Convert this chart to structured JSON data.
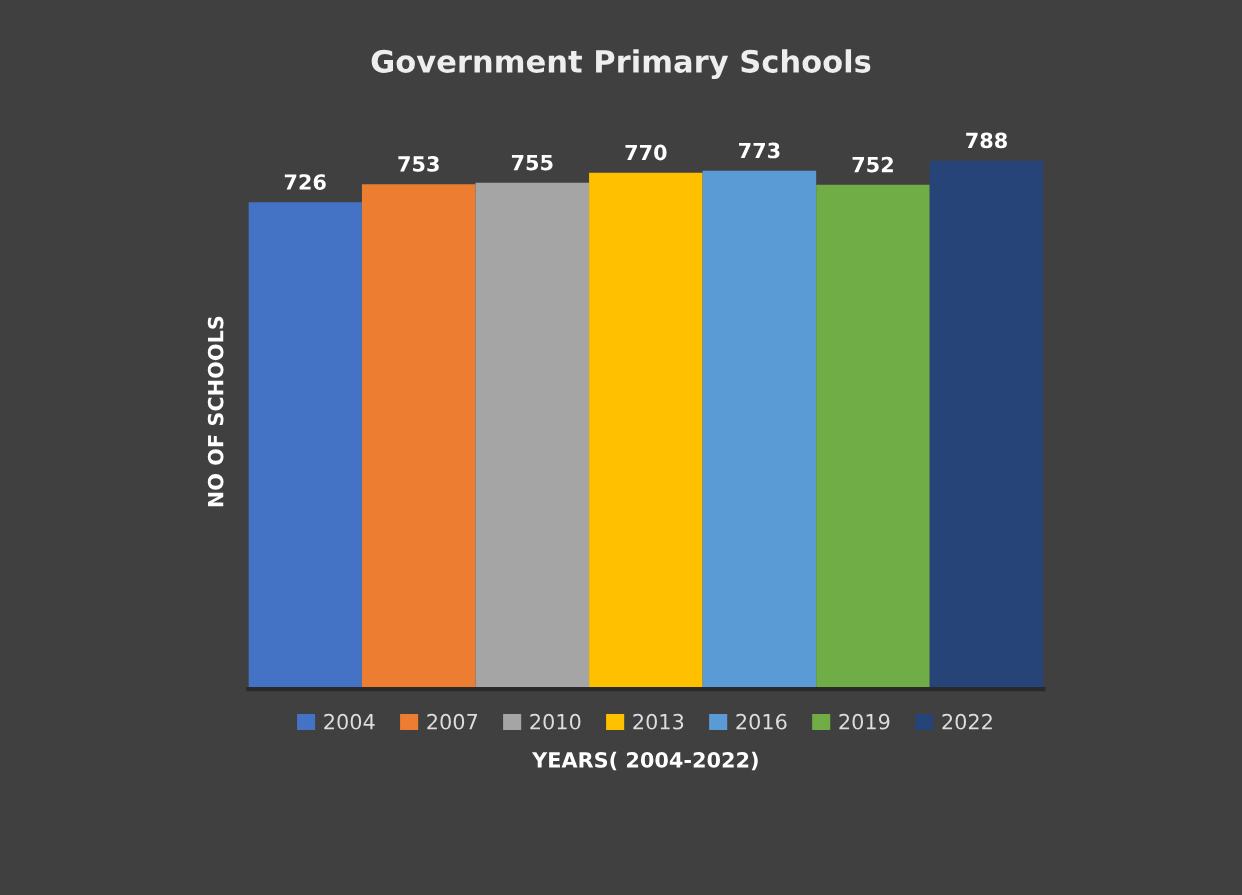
{
  "chart_data": {
    "type": "bar",
    "title": "Government Primary Schools",
    "xlabel": "YEARS( 2004-2022)",
    "ylabel": "NO OF SCHOOLS",
    "categories": [
      null
    ],
    "series": [
      {
        "name": "2004",
        "color": "#4472c4",
        "values": [
          726
        ]
      },
      {
        "name": "2007",
        "color": "#ed7d31",
        "values": [
          753
        ]
      },
      {
        "name": "2010",
        "color": "#a5a5a5",
        "values": [
          755
        ]
      },
      {
        "name": "2013",
        "color": "#ffc000",
        "values": [
          770
        ]
      },
      {
        "name": "2016",
        "color": "#5b9bd5",
        "values": [
          773
        ]
      },
      {
        "name": "2019",
        "color": "#70ad47",
        "values": [
          752
        ]
      },
      {
        "name": "2022",
        "color": "#264478",
        "values": [
          788
        ]
      }
    ],
    "data_labels": true,
    "legend": "bottom",
    "grid": false,
    "tick_labels": false
  }
}
